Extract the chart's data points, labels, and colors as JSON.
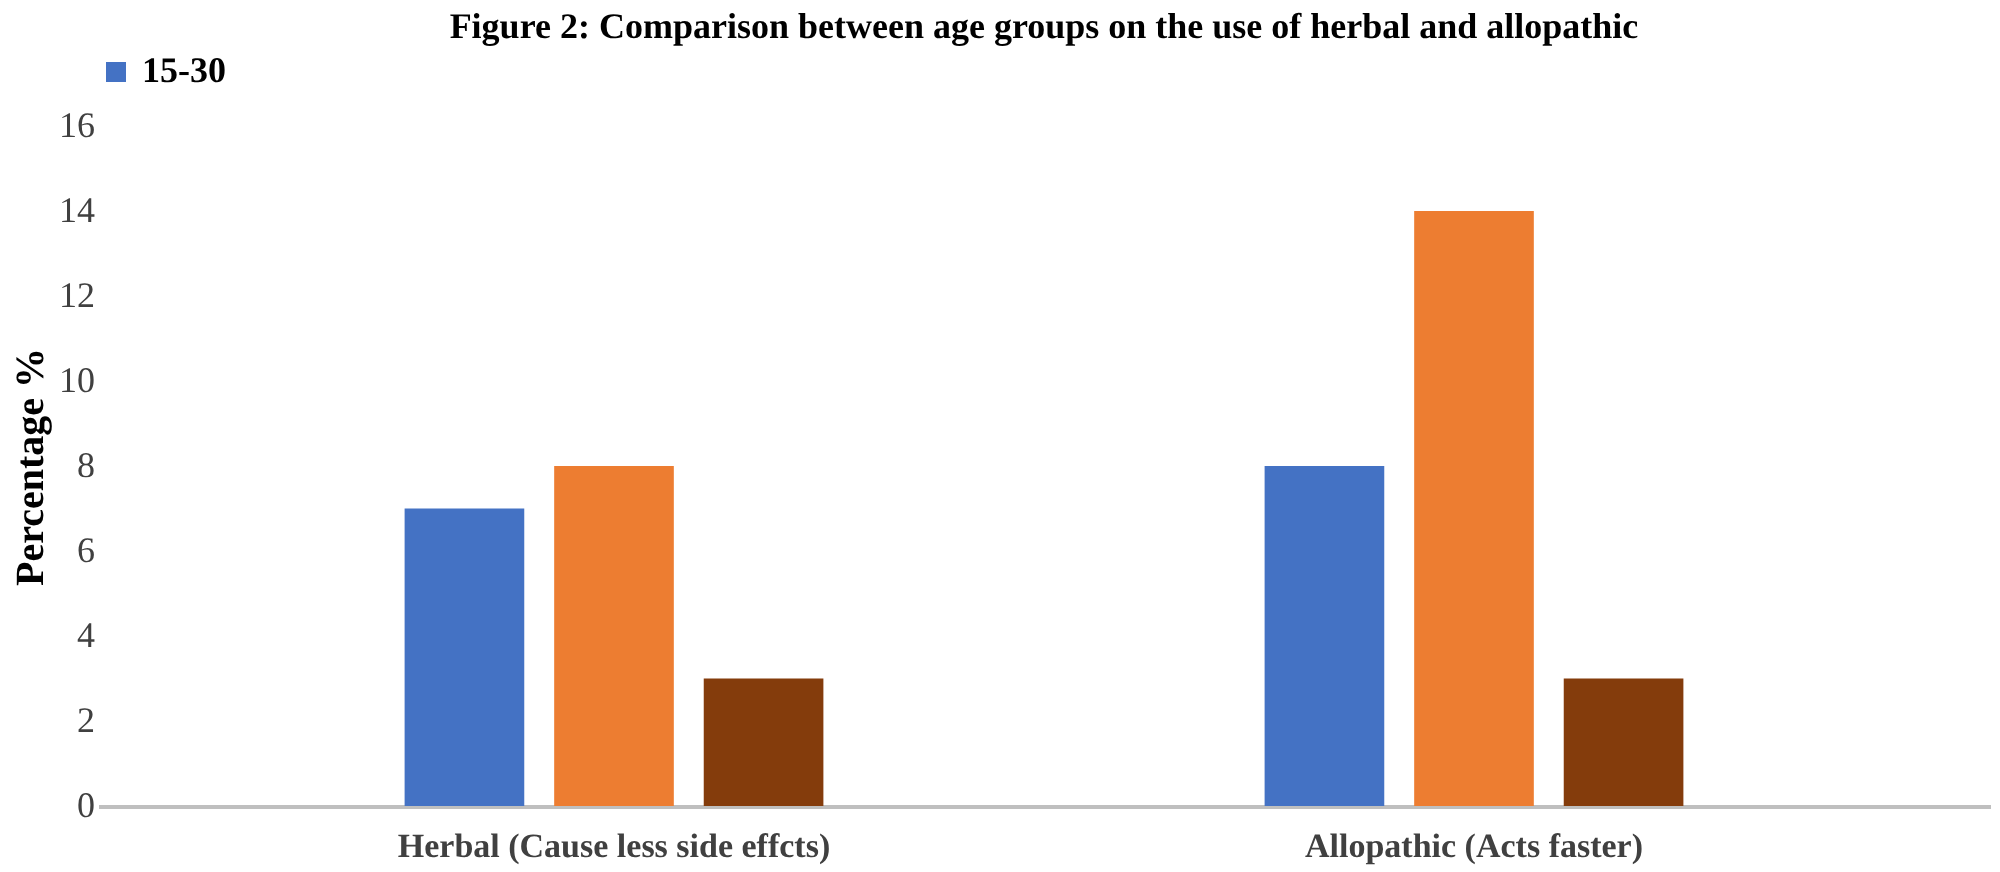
{
  "chart_data": {
    "type": "bar",
    "title": "Figure 2: Comparison between age groups on the use of herbal and allopathic",
    "ylabel": "Percentage %",
    "categories": [
      "Herbal (Cause less side effcts)",
      "Allopathic (Acts faster)"
    ],
    "series": [
      {
        "name": "15-30",
        "color": "#4472c4",
        "values": [
          7,
          8
        ]
      },
      {
        "color": "#ed7d31",
        "values": [
          8,
          14
        ]
      },
      {
        "color": "#843c0c",
        "values": [
          3,
          3
        ]
      }
    ],
    "ylim": [
      0,
      16
    ],
    "yticks": [
      0,
      2,
      4,
      6,
      8,
      10,
      12,
      14,
      16
    ],
    "grid": false,
    "legend": "top"
  }
}
